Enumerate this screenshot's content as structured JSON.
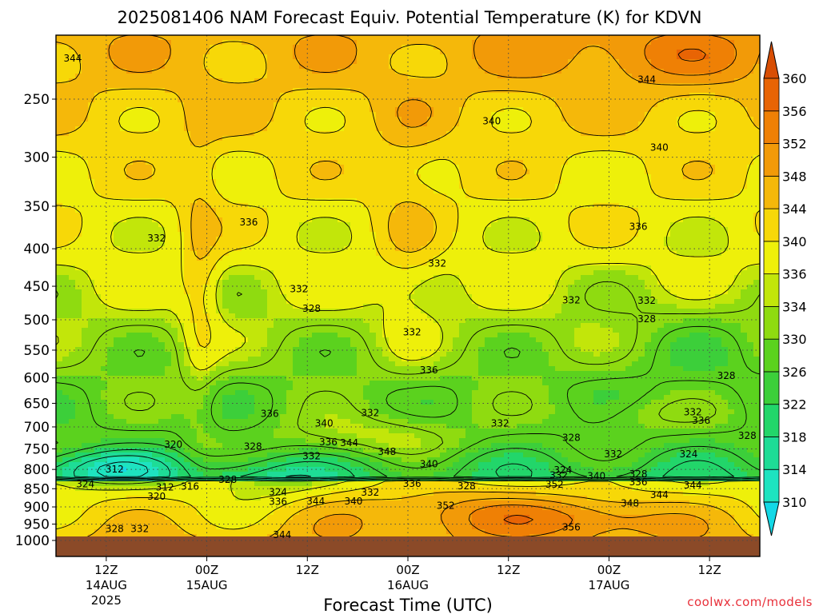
{
  "chart_data": {
    "type": "heatmap",
    "title": "2025081406 NAM Forecast Equiv. Potential Temperature (K) for KDVN",
    "xlabel": "Forecast Time (UTC)",
    "ylabel": "",
    "credit": "coolwx.com/models",
    "y_axis": {
      "scale": "log-pressure",
      "range": [
        1000,
        200
      ],
      "ticks": [
        250,
        300,
        350,
        400,
        450,
        500,
        550,
        600,
        650,
        700,
        750,
        800,
        850,
        900,
        950,
        1000
      ]
    },
    "x_axis": {
      "range_hours": [
        0,
        84
      ],
      "ticks": [
        {
          "label": "12Z",
          "sub": "14AUG",
          "sub2": "2025",
          "hour": 6
        },
        {
          "label": "00Z",
          "sub": "15AUG",
          "sub2": "",
          "hour": 18
        },
        {
          "label": "12Z",
          "sub": "",
          "sub2": "",
          "hour": 30
        },
        {
          "label": "00Z",
          "sub": "16AUG",
          "sub2": "",
          "hour": 42
        },
        {
          "label": "12Z",
          "sub": "",
          "sub2": "",
          "hour": 54
        },
        {
          "label": "00Z",
          "sub": "17AUG",
          "sub2": "",
          "hour": 66
        },
        {
          "label": "12Z",
          "sub": "",
          "sub2": "",
          "hour": 78
        }
      ]
    },
    "colorbar": {
      "levels": [
        310,
        314,
        318,
        322,
        326,
        330,
        334,
        336,
        340,
        344,
        348,
        352,
        356,
        360
      ],
      "colors": [
        "#14d8e6",
        "#1ee3c0",
        "#1edc96",
        "#22d66a",
        "#3ccf3a",
        "#5bd21e",
        "#8fdb10",
        "#c2e60a",
        "#eef00a",
        "#f7d808",
        "#f5b80a",
        "#f29a08",
        "#ef8005",
        "#e86404",
        "#d84e04"
      ]
    },
    "ground_color": "#8b4a28",
    "grid": true,
    "contour_labels": [
      {
        "v": "344",
        "h": 2.0,
        "p": 220
      },
      {
        "v": "344",
        "h": 70.5,
        "p": 235
      },
      {
        "v": "340",
        "h": 52.0,
        "p": 268
      },
      {
        "v": "340",
        "h": 72.0,
        "p": 291
      },
      {
        "v": "336",
        "h": 23.0,
        "p": 368
      },
      {
        "v": "336",
        "h": 69.5,
        "p": 373
      },
      {
        "v": "332",
        "h": 12.0,
        "p": 387
      },
      {
        "v": "332",
        "h": 45.5,
        "p": 419
      },
      {
        "v": "332",
        "h": 29.0,
        "p": 454
      },
      {
        "v": "332",
        "h": 61.5,
        "p": 470
      },
      {
        "v": "332",
        "h": 70.5,
        "p": 471
      },
      {
        "v": "328",
        "h": 30.5,
        "p": 483
      },
      {
        "v": "328",
        "h": 70.5,
        "p": 499
      },
      {
        "v": "332",
        "h": 42.5,
        "p": 520
      },
      {
        "v": "336",
        "h": 44.5,
        "p": 586
      },
      {
        "v": "328",
        "h": 80.0,
        "p": 596
      },
      {
        "v": "336",
        "h": 25.5,
        "p": 672
      },
      {
        "v": "332",
        "h": 37.5,
        "p": 670
      },
      {
        "v": "332",
        "h": 76.0,
        "p": 668
      },
      {
        "v": "340",
        "h": 32.0,
        "p": 692
      },
      {
        "v": "332",
        "h": 53.0,
        "p": 692
      },
      {
        "v": "336",
        "h": 77.0,
        "p": 686
      },
      {
        "v": "328",
        "h": 61.5,
        "p": 724
      },
      {
        "v": "336",
        "h": 32.5,
        "p": 734
      },
      {
        "v": "344",
        "h": 35.0,
        "p": 736
      },
      {
        "v": "328",
        "h": 82.5,
        "p": 720
      },
      {
        "v": "320",
        "h": 14.0,
        "p": 740
      },
      {
        "v": "328",
        "h": 23.5,
        "p": 744
      },
      {
        "v": "348",
        "h": 39.5,
        "p": 757
      },
      {
        "v": "332",
        "h": 66.5,
        "p": 762
      },
      {
        "v": "324",
        "h": 75.5,
        "p": 762
      },
      {
        "v": "332",
        "h": 30.5,
        "p": 767
      },
      {
        "v": "312",
        "h": 7.0,
        "p": 800
      },
      {
        "v": "340",
        "h": 44.5,
        "p": 787
      },
      {
        "v": "324",
        "h": 60.5,
        "p": 802
      },
      {
        "v": "332",
        "h": 60.0,
        "p": 815
      },
      {
        "v": "340",
        "h": 64.5,
        "p": 817
      },
      {
        "v": "328",
        "h": 69.5,
        "p": 812
      },
      {
        "v": "328",
        "h": 20.5,
        "p": 826
      },
      {
        "v": "336",
        "h": 42.5,
        "p": 837
      },
      {
        "v": "328",
        "h": 49.0,
        "p": 843
      },
      {
        "v": "352",
        "h": 59.5,
        "p": 839
      },
      {
        "v": "336",
        "h": 69.5,
        "p": 833
      },
      {
        "v": "344",
        "h": 76.0,
        "p": 841
      },
      {
        "v": "324",
        "h": 3.5,
        "p": 838
      },
      {
        "v": "312",
        "h": 13.0,
        "p": 846
      },
      {
        "v": "316",
        "h": 16.0,
        "p": 844
      },
      {
        "v": "324",
        "h": 26.5,
        "p": 859
      },
      {
        "v": "332",
        "h": 37.5,
        "p": 860
      },
      {
        "v": "344",
        "h": 72.0,
        "p": 867
      },
      {
        "v": "320",
        "h": 12.0,
        "p": 871
      },
      {
        "v": "336",
        "h": 26.5,
        "p": 885
      },
      {
        "v": "344",
        "h": 31.0,
        "p": 884
      },
      {
        "v": "340",
        "h": 35.5,
        "p": 884
      },
      {
        "v": "348",
        "h": 68.5,
        "p": 890
      },
      {
        "v": "352",
        "h": 46.5,
        "p": 897
      },
      {
        "v": "356",
        "h": 61.5,
        "p": 960
      },
      {
        "v": "328",
        "h": 7.0,
        "p": 964
      },
      {
        "v": "332",
        "h": 10.0,
        "p": 964
      },
      {
        "v": "344",
        "h": 27.0,
        "p": 983
      }
    ]
  }
}
